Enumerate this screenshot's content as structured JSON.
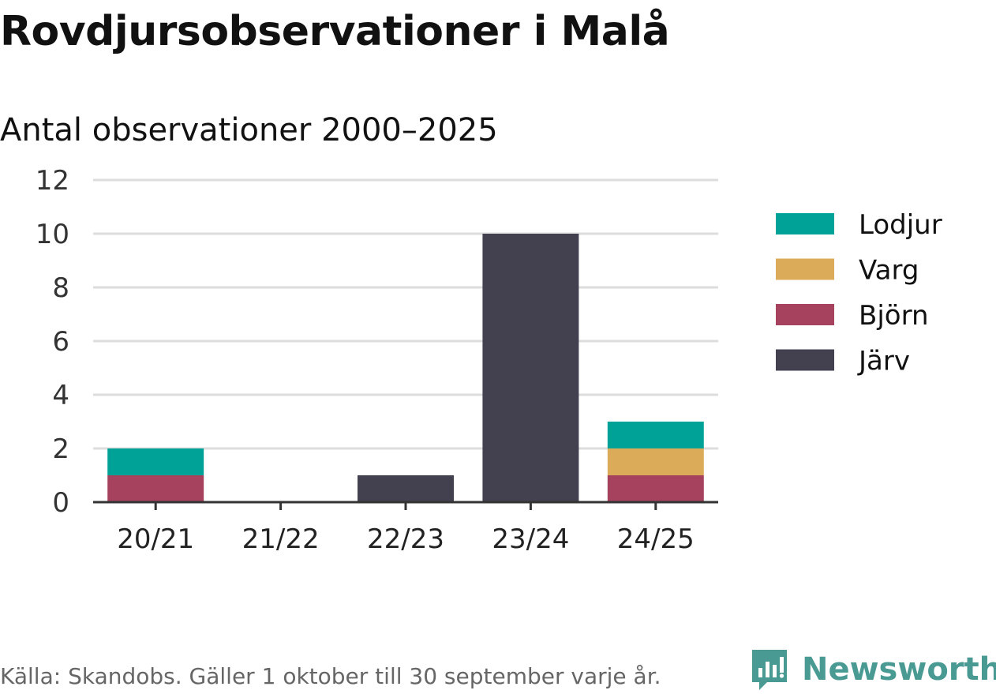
{
  "title": "Rovdjursobservationer i Malå",
  "subtitle": "Antal observationer 2000–2025",
  "footer": "Källa: Skandobs. Gäller 1 oktober till 30 september varje år.",
  "brand": {
    "name": "Newsworthy",
    "icon": "newsworthy-logo-icon",
    "color": "#4a9a94"
  },
  "chart_data": {
    "type": "bar",
    "stacked": true,
    "title": "Rovdjursobservationer i Malå",
    "subtitle": "Antal observationer 2000–2025",
    "xlabel": "",
    "ylabel": "",
    "categories": [
      "20/21",
      "21/22",
      "22/23",
      "23/24",
      "24/25"
    ],
    "ylim": [
      0,
      12
    ],
    "yticks": [
      0,
      2,
      4,
      6,
      8,
      10,
      12
    ],
    "grid": true,
    "legend_position": "right",
    "series": [
      {
        "name": "Järv",
        "color": "#43404f",
        "values": [
          0,
          0,
          1,
          10,
          0
        ]
      },
      {
        "name": "Björn",
        "color": "#a6415e",
        "values": [
          1,
          0,
          0,
          0,
          1
        ]
      },
      {
        "name": "Varg",
        "color": "#dcab5a",
        "values": [
          0,
          0,
          0,
          0,
          1
        ]
      },
      {
        "name": "Lodjur",
        "color": "#00a297",
        "values": [
          1,
          0,
          0,
          0,
          1
        ]
      }
    ],
    "legend_order": [
      "Lodjur",
      "Varg",
      "Björn",
      "Järv"
    ]
  }
}
